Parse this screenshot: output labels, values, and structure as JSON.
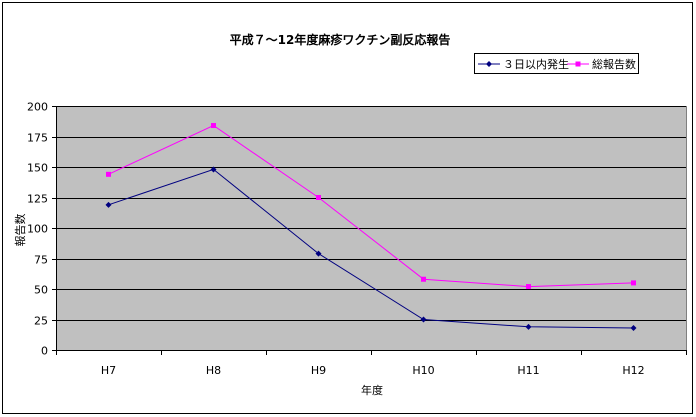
{
  "chart_data": {
    "type": "line",
    "title": "平成７～12年度麻疹ワクチン副反応報告",
    "xlabel": "年度",
    "ylabel": "報告数",
    "categories": [
      "H7",
      "H8",
      "H9",
      "H10",
      "H11",
      "H12"
    ],
    "ylim": [
      0,
      200
    ],
    "yticks": [
      0,
      25,
      50,
      75,
      100,
      125,
      150,
      175,
      200
    ],
    "grid": true,
    "legend_position": "top-right",
    "plot_background": "#c0c0c0",
    "series": [
      {
        "name": "３日以内発生",
        "values": [
          119,
          148,
          79,
          25,
          19,
          18
        ],
        "color": "#000080",
        "marker": "diamond"
      },
      {
        "name": "総報告数",
        "values": [
          144,
          184,
          125,
          58,
          52,
          55
        ],
        "color": "#ff00ff",
        "marker": "square"
      }
    ]
  }
}
